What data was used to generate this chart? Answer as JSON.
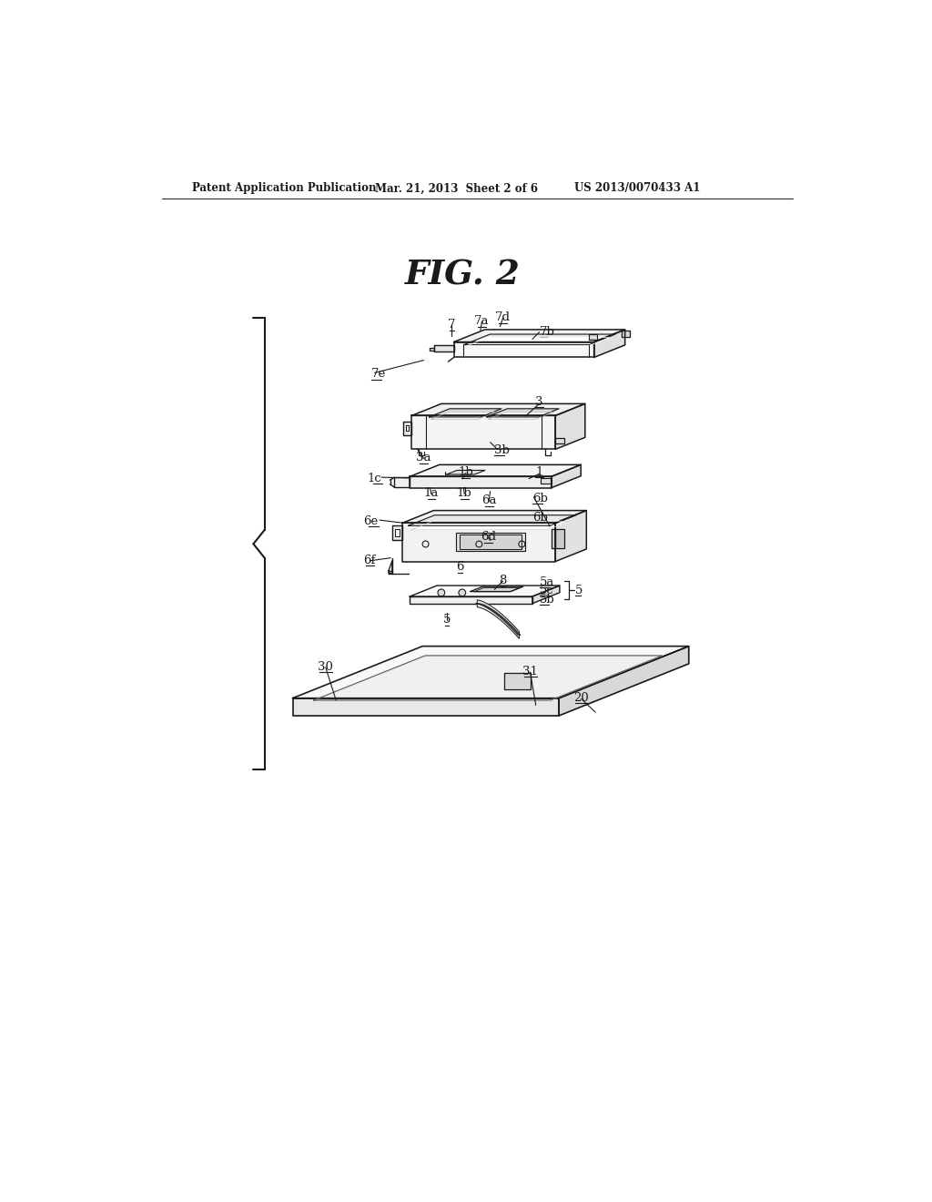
{
  "bg_color": "#ffffff",
  "lc": "#1a1a1a",
  "header_left": "Patent Application Publication",
  "header_mid": "Mar. 21, 2013  Sheet 2 of 6",
  "header_right": "US 2013/0070433 A1",
  "fig_title": "FIG. 2"
}
